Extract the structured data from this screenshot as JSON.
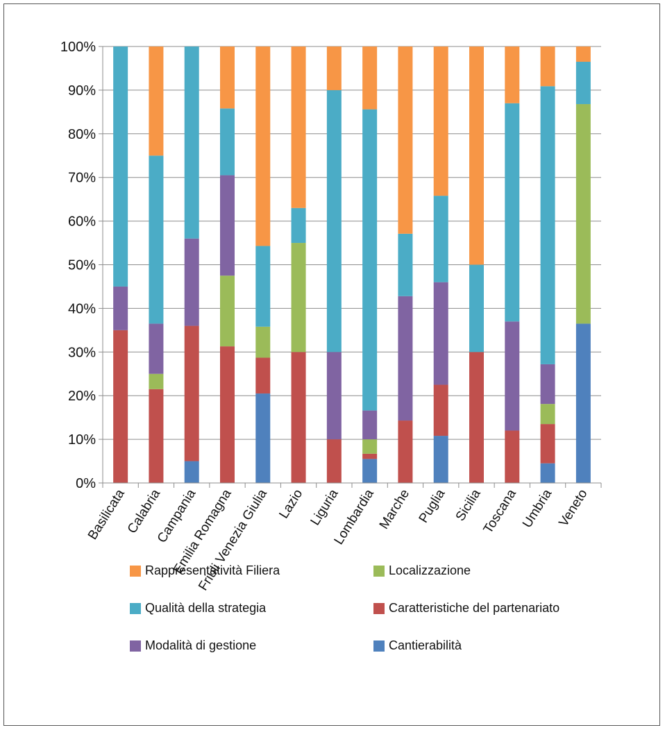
{
  "chart_data": {
    "type": "bar",
    "stacked": true,
    "percent": true,
    "title": "",
    "xlabel": "",
    "ylabel": "",
    "ylim": [
      0,
      100
    ],
    "yticks": [
      "0%",
      "10%",
      "20%",
      "30%",
      "40%",
      "50%",
      "60%",
      "70%",
      "80%",
      "90%",
      "100%"
    ],
    "categories": [
      "Basilicata",
      "Calabria",
      "Campania",
      "Emilia Romagna",
      "Friuli Venezia Giulia",
      "Lazio",
      "Liguria",
      "Lombardia",
      "Marche",
      "Puglia",
      "Sicilia",
      "Toscana",
      "Umbria",
      "Veneto"
    ],
    "series": [
      {
        "name": "Cantierabilità",
        "color": "#4f81bd",
        "values": [
          0,
          0,
          5,
          0,
          20.5,
          0,
          0,
          5.5,
          0,
          10.8,
          0,
          0,
          4.5,
          36.5
        ]
      },
      {
        "name": "Caratteristiche del partenariato",
        "color": "#c0504d",
        "values": [
          35,
          21.5,
          31,
          31.3,
          8.2,
          30,
          10,
          1.2,
          14.3,
          11.7,
          30,
          12,
          9,
          0
        ]
      },
      {
        "name": "Localizzazione",
        "color": "#9bbb59",
        "values": [
          0,
          3.5,
          0,
          16.2,
          7.1,
          25,
          0,
          3.3,
          0,
          0,
          0,
          0,
          4.6,
          50.3
        ]
      },
      {
        "name": "Modalità di gestione",
        "color": "#8064a2",
        "values": [
          10,
          11.5,
          20,
          23,
          0,
          0,
          20,
          6.6,
          28.5,
          23.5,
          0,
          25,
          9.1,
          0
        ]
      },
      {
        "name": "Qualità della strategia",
        "color": "#4bacc6",
        "values": [
          55,
          38.5,
          44,
          15.3,
          18.5,
          8,
          60,
          69,
          14.3,
          19.8,
          20,
          50,
          63.7,
          9.7
        ]
      },
      {
        "name": "Rappresentatività Filiera",
        "color": "#f79646",
        "values": [
          0,
          25,
          0,
          14.2,
          45.7,
          37,
          10,
          14.4,
          42.9,
          34.2,
          50,
          13,
          9.1,
          3.5
        ]
      }
    ],
    "legend": {
      "placement": "bottom",
      "order": [
        "Rappresentatività Filiera",
        "Localizzazione",
        "Qualità della strategia",
        "Caratteristiche del partenariato",
        "Modalità di gestione",
        "Cantierabilità"
      ]
    }
  }
}
